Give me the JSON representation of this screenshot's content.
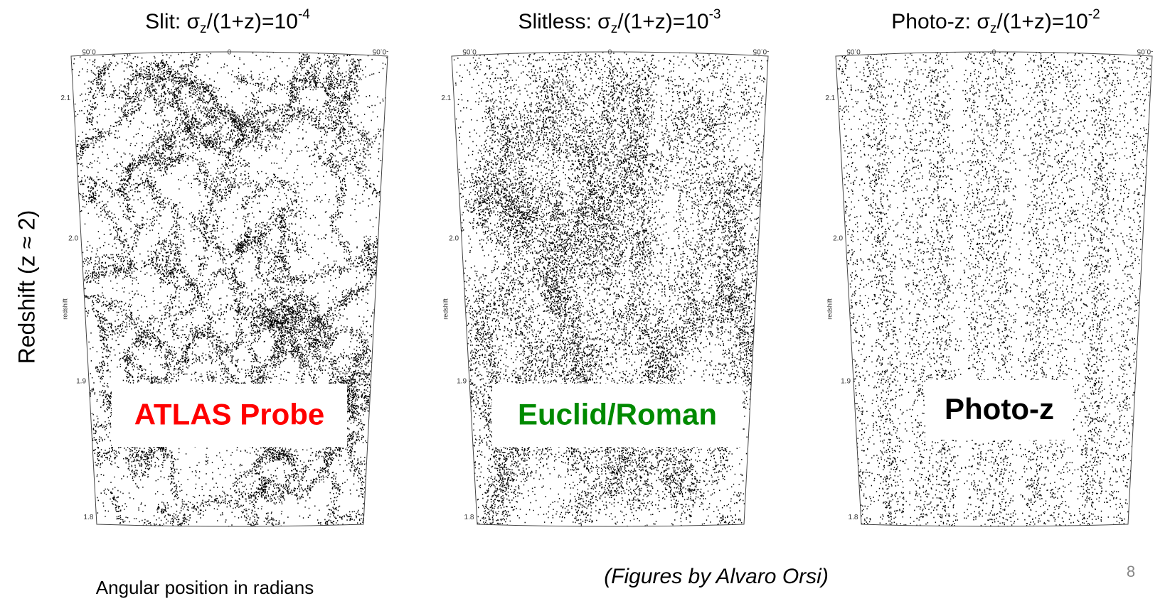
{
  "ylabel": "Redshift  (z ≈ 2)",
  "panels": [
    {
      "title": {
        "prefix": "Slit: σ",
        "sub": "z",
        "mid": "/(1+z)=10",
        "sup": "-4"
      },
      "label": "ATLAS Probe",
      "label_color": "#ff0000",
      "xticks": [
        "0.05",
        "0",
        "-0.05"
      ],
      "yticks": [
        "2.1",
        "2.0",
        "1.9",
        "1.8"
      ],
      "axis_label": "redshift"
    },
    {
      "title": {
        "prefix": "Slitless: σ",
        "sub": "z",
        "mid": "/(1+z)=10",
        "sup": "-3"
      },
      "label": "Euclid/Roman",
      "label_color": "#008a00",
      "xticks": [
        "0.05",
        "0",
        "-0.05"
      ],
      "yticks": [
        "2.1",
        "2.0",
        "1.9",
        "1.8"
      ],
      "axis_label": "redshift"
    },
    {
      "title": {
        "prefix": "Photo-z: σ",
        "sub": "z",
        "mid": "/(1+z)=10",
        "sup": "-2"
      },
      "label": "Photo-z",
      "label_color": "#000000",
      "xticks": [
        "0.05",
        "0",
        "-0.05"
      ],
      "yticks": [
        "2.1",
        "2.0",
        "1.9",
        "1.8"
      ],
      "axis_label": "redshift"
    }
  ],
  "xlabel": "Angular position in radians",
  "credit": "(Figures by Alvaro Orsi)",
  "page_number": "8"
}
